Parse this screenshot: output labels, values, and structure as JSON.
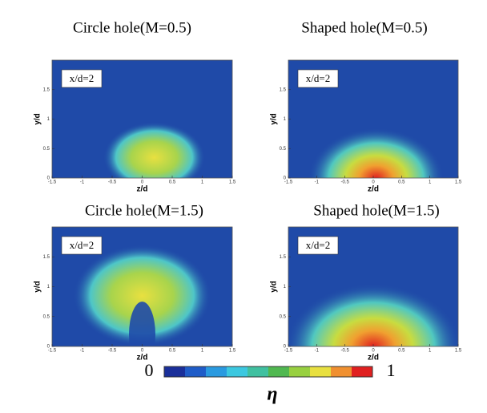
{
  "panels": [
    {
      "title": "Circle hole(M=0.5)",
      "label": "x/d=2",
      "x_axis_label": "z/d",
      "y_axis_label": "y/d"
    },
    {
      "title": "Shaped hole(M=0.5)",
      "label": "x/d=2",
      "x_axis_label": "z/d",
      "y_axis_label": "y/d"
    },
    {
      "title": "Circle hole(M=1.5)",
      "label": "x/d=2",
      "x_axis_label": "z/d",
      "y_axis_label": "y/d"
    },
    {
      "title": "Shaped hole(M=1.5)",
      "label": "x/d=2",
      "x_axis_label": "z/d",
      "y_axis_label": "y/d"
    }
  ],
  "axes": {
    "xlim": [
      -1.5,
      1.5
    ],
    "ylim": [
      0,
      2
    ],
    "xticks": [
      -1.5,
      -1,
      -0.5,
      0,
      0.5,
      1,
      1.5
    ],
    "yticks": [
      0,
      0.5,
      1,
      1.5
    ]
  },
  "colorbar": {
    "min": 0,
    "max": 1,
    "symbol": "η"
  }
}
